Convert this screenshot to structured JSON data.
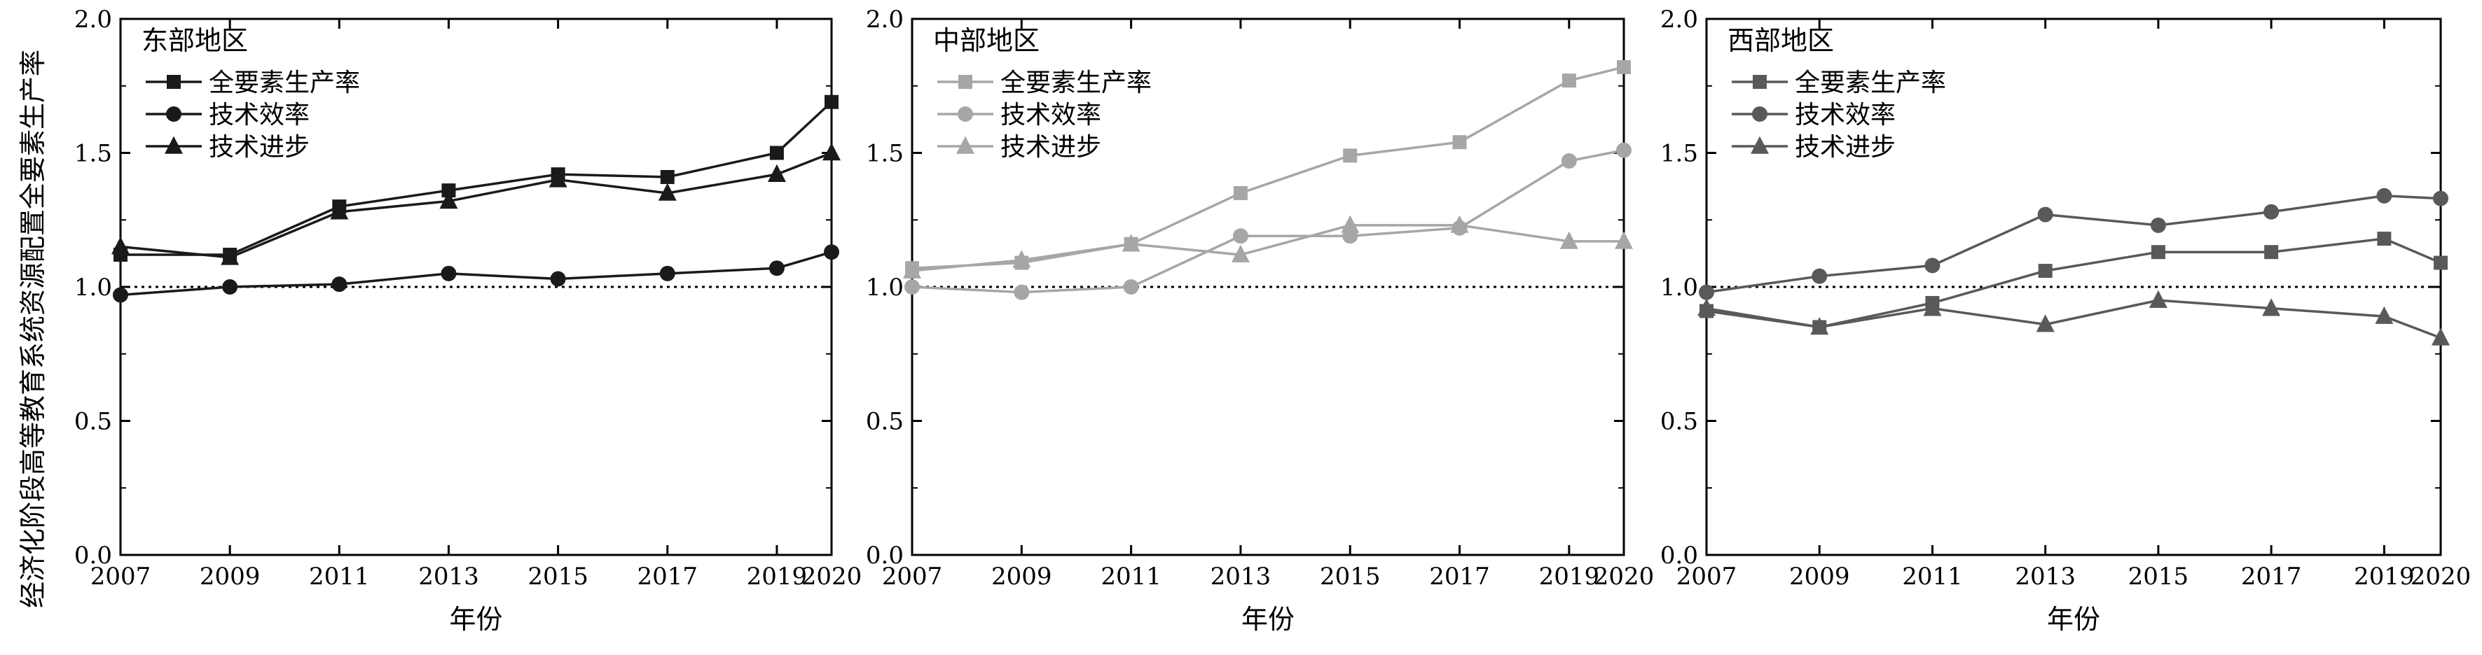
{
  "figure": {
    "y_axis_title": "经济化阶段高等教育系统资源配置全要素生产率",
    "x_axis_title": "年份"
  },
  "chart_data": [
    {
      "type": "line",
      "title": "东部地区",
      "xlabel": "年份",
      "ylabel": "经济化阶段高等教育系统资源配置全要素生产率",
      "x": [
        2007,
        2009,
        2011,
        2013,
        2015,
        2017,
        2019,
        2020
      ],
      "x_ticks": [
        2007,
        2009,
        2011,
        2013,
        2015,
        2017,
        2019,
        2020
      ],
      "y_ticks": [
        "0.0",
        "0.5",
        "1.0",
        "1.5",
        "2.0"
      ],
      "ylim": [
        0,
        2
      ],
      "xlim": [
        2007,
        2020
      ],
      "reference_line": 1.0,
      "legend_position": "top-left",
      "color": "#1a1a1a",
      "series": [
        {
          "name": "全要素生产率",
          "marker": "square",
          "values": [
            1.12,
            1.12,
            1.3,
            1.36,
            1.42,
            1.41,
            1.5,
            1.69
          ]
        },
        {
          "name": "技术效率",
          "marker": "circle",
          "values": [
            0.97,
            1.0,
            1.01,
            1.05,
            1.03,
            1.05,
            1.07,
            1.13
          ]
        },
        {
          "name": "技术进步",
          "marker": "triangle",
          "values": [
            1.15,
            1.11,
            1.28,
            1.32,
            1.4,
            1.35,
            1.42,
            1.5
          ]
        }
      ]
    },
    {
      "type": "line",
      "title": "中部地区",
      "xlabel": "年份",
      "ylabel": "",
      "x": [
        2007,
        2009,
        2011,
        2013,
        2015,
        2017,
        2019,
        2020
      ],
      "x_ticks": [
        2007,
        2009,
        2011,
        2013,
        2015,
        2017,
        2019,
        2020
      ],
      "y_ticks": [
        "0.0",
        "0.5",
        "1.0",
        "1.5",
        "2.0"
      ],
      "ylim": [
        0,
        2
      ],
      "xlim": [
        2007,
        2020
      ],
      "reference_line": 1.0,
      "legend_position": "top-left",
      "color": "#a6a6a6",
      "series": [
        {
          "name": "全要素生产率",
          "marker": "square",
          "values": [
            1.07,
            1.09,
            1.16,
            1.35,
            1.49,
            1.54,
            1.77,
            1.82
          ]
        },
        {
          "name": "技术效率",
          "marker": "circle",
          "values": [
            1.0,
            0.98,
            1.0,
            1.19,
            1.19,
            1.22,
            1.47,
            1.51
          ]
        },
        {
          "name": "技术进步",
          "marker": "triangle",
          "values": [
            1.06,
            1.1,
            1.16,
            1.12,
            1.23,
            1.23,
            1.17,
            1.17
          ]
        }
      ]
    },
    {
      "type": "line",
      "title": "西部地区",
      "xlabel": "年份",
      "ylabel": "",
      "x": [
        2007,
        2009,
        2011,
        2013,
        2015,
        2017,
        2019,
        2020
      ],
      "x_ticks": [
        2007,
        2009,
        2011,
        2013,
        2015,
        2017,
        2019,
        2020
      ],
      "y_ticks": [
        "0.0",
        "0.5",
        "1.0",
        "1.5",
        "2.0"
      ],
      "ylim": [
        0,
        2
      ],
      "xlim": [
        2007,
        2020
      ],
      "reference_line": 1.0,
      "legend_position": "top-left",
      "color": "#595959",
      "series": [
        {
          "name": "全要素生产率",
          "marker": "square",
          "values": [
            0.91,
            0.85,
            0.94,
            1.06,
            1.13,
            1.13,
            1.18,
            1.09
          ]
        },
        {
          "name": "技术效率",
          "marker": "circle",
          "values": [
            0.98,
            1.04,
            1.08,
            1.27,
            1.23,
            1.28,
            1.34,
            1.33
          ]
        },
        {
          "name": "技术进步",
          "marker": "triangle",
          "values": [
            0.92,
            0.85,
            0.92,
            0.86,
            0.95,
            0.92,
            0.89,
            0.81
          ]
        }
      ]
    }
  ]
}
